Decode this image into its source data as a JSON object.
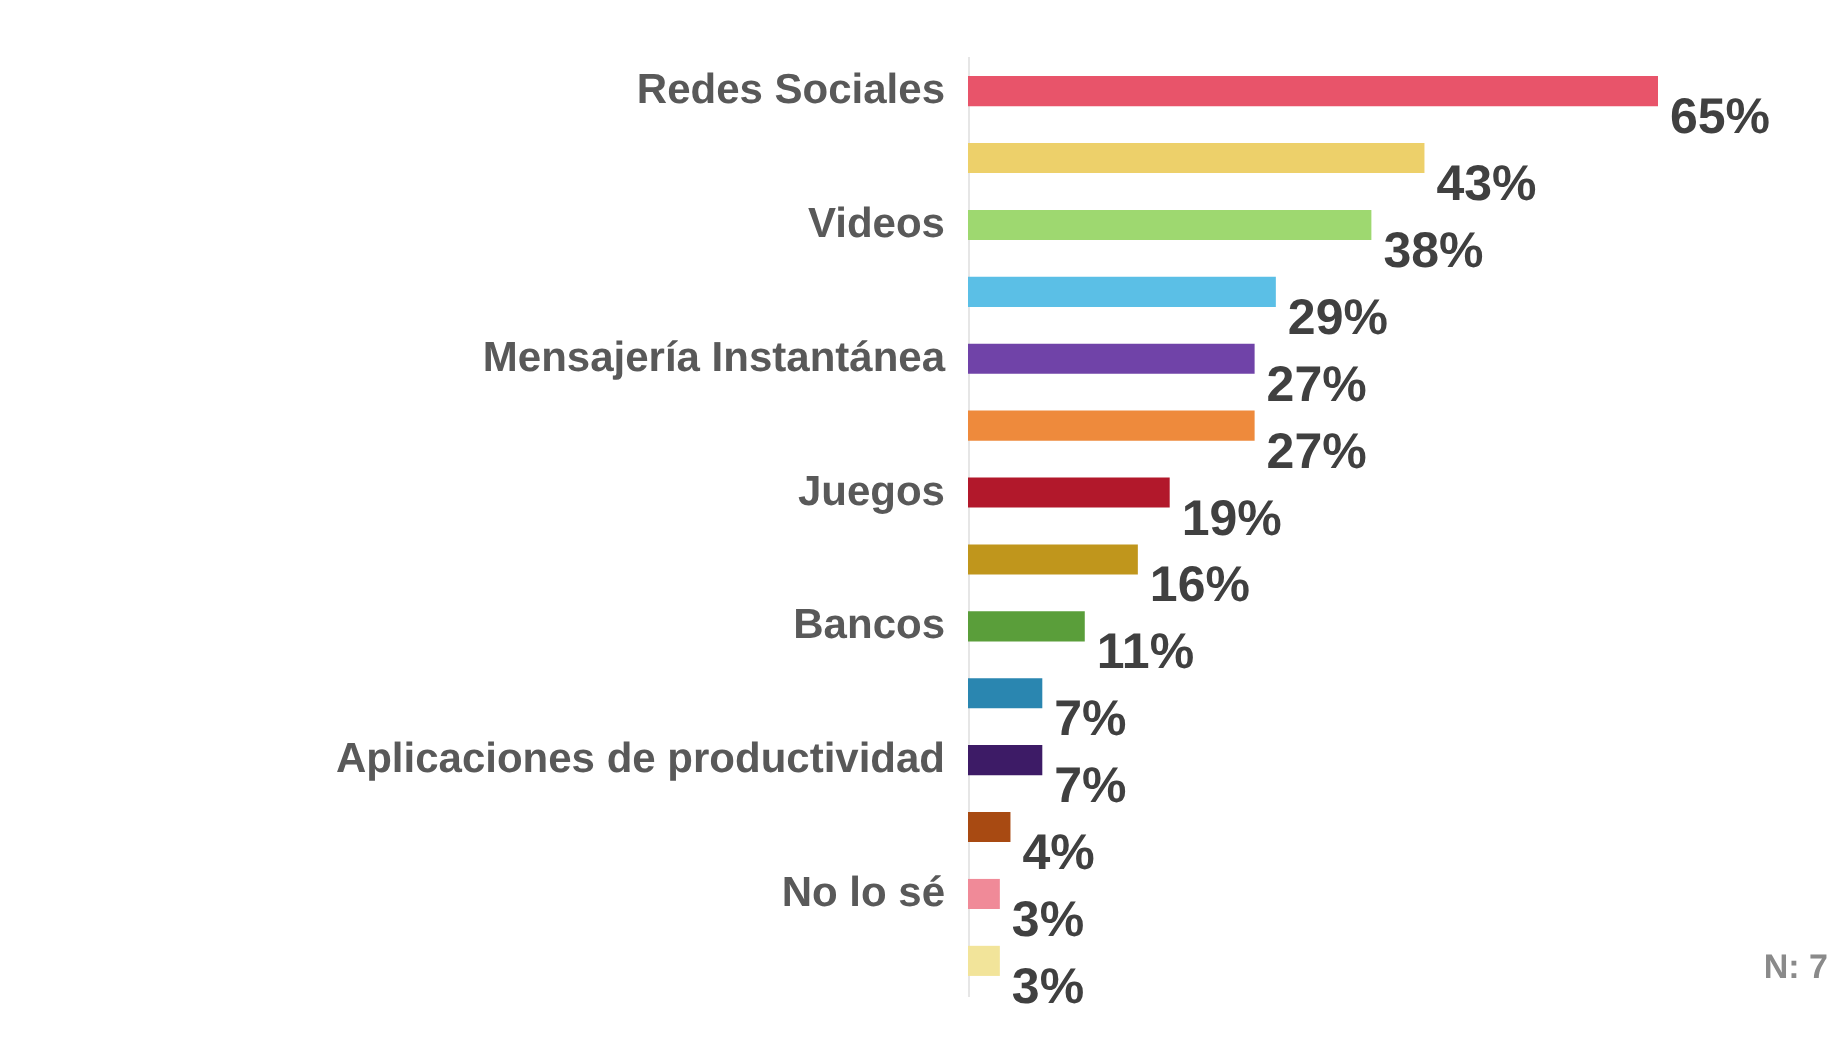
{
  "chart_data": {
    "type": "bar",
    "orientation": "horizontal",
    "categories": [
      "Redes Sociales",
      null,
      "Videos",
      null,
      "Mensajería Instantánea",
      null,
      "Juegos",
      null,
      "Bancos",
      null,
      "Aplicaciones de productividad",
      null,
      "No lo sé",
      null
    ],
    "values": [
      65,
      43,
      38,
      29,
      27,
      27,
      19,
      16,
      11,
      7,
      7,
      4,
      3,
      3
    ],
    "value_labels": [
      "65%",
      "43%",
      "38%",
      "29%",
      "27%",
      "27%",
      "19%",
      "16%",
      "11%",
      "7%",
      "7%",
      "4%",
      "3%",
      "3%"
    ],
    "colors": [
      "#e8546a",
      "#edd06a",
      "#9ed870",
      "#5bbfe6",
      "#7043a8",
      "#ee8a3c",
      "#b2182b",
      "#c0961c",
      "#5a9e3a",
      "#2a86b0",
      "#3d1b66",
      "#a84a12",
      "#f08a98",
      "#f2e49a"
    ],
    "annotations": [
      "N: 7"
    ]
  }
}
